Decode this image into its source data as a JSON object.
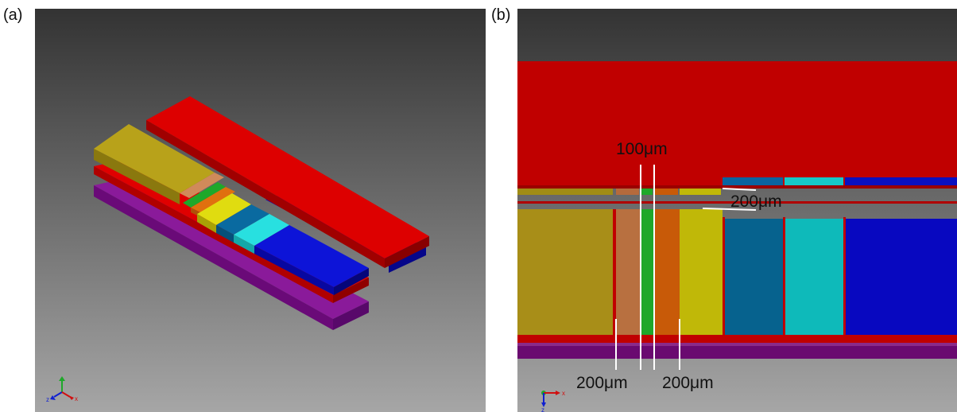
{
  "panels": [
    {
      "label": "(a)"
    },
    {
      "label": "(b)"
    }
  ],
  "annotations": {
    "top_width": "100μm",
    "gap": "200μm",
    "bottom_left": "200μm",
    "bottom_right": "200μm"
  },
  "axes_triad": {
    "panel_a": {
      "z": "z",
      "x": "x"
    },
    "panel_b": {
      "x": "x",
      "z": "z"
    }
  },
  "colors": {
    "red": "#cc0000",
    "olive": "#b8a21a",
    "tan": "#c87a47",
    "green": "#1fa82a",
    "orange": "#d9660b",
    "yellow": "#d4cc08",
    "steel_blue": "#0a6aa0",
    "cyan": "#18d4d4",
    "blue": "#0d14c8",
    "purple": "#700a80"
  }
}
